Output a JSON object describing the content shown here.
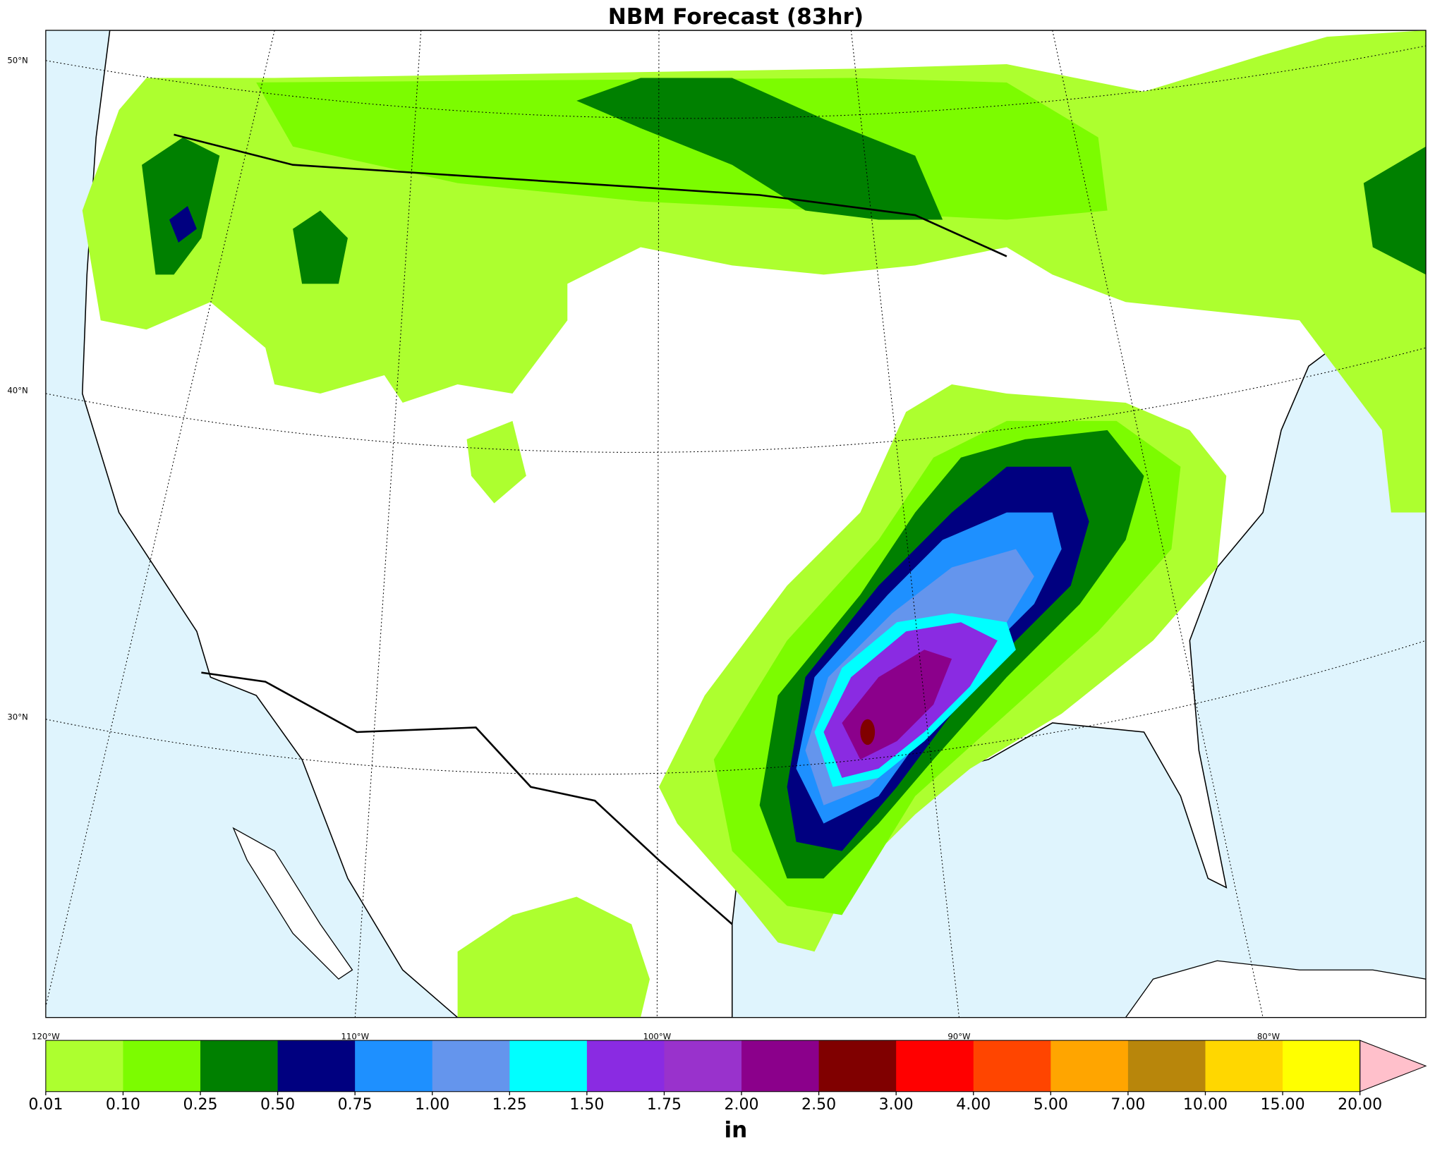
{
  "title": "NBM Forecast (83hr)",
  "map": {
    "lat_labels": [
      "50°N",
      "40°N",
      "30°N"
    ],
    "lon_labels": [
      "120°W",
      "110°W",
      "100°W",
      "90°W",
      "80°W"
    ]
  },
  "colorbar": {
    "label": "in",
    "ticks": [
      0.01,
      {
        "value": 0.1,
        "label": "0.10"
      },
      0.25,
      {
        "value": 0.5,
        "label": "0.50"
      },
      0.75,
      {
        "value": 1,
        "label": "1.00"
      },
      1.25,
      {
        "value": 1.5,
        "label": "1.50"
      },
      1.75,
      {
        "value": 2,
        "label": "2.00"
      },
      {
        "value": 2.5,
        "label": "2.50"
      },
      {
        "value": 3,
        "label": "3.00"
      },
      {
        "value": 4,
        "label": "4.00"
      },
      {
        "value": 5,
        "label": "5.00"
      },
      {
        "value": 7,
        "label": "7.00"
      },
      {
        "value": 10,
        "label": "10.00"
      },
      {
        "value": 15,
        "label": "15.00"
      },
      {
        "value": 20,
        "label": "20.00"
      }
    ],
    "colors": [
      "#adff2f",
      "#7cfc00",
      "#008000",
      "#000080",
      "#1e90ff",
      "#6495ed",
      "#00ffff",
      "#8a2be2",
      "#9932cc",
      "#8b008b",
      "#800000",
      "#ff0000",
      "#ff4500",
      "#ffa500",
      "#b8860b",
      "#ffd700",
      "#ffff00"
    ],
    "extend_color": "#ffc0cb"
  }
}
